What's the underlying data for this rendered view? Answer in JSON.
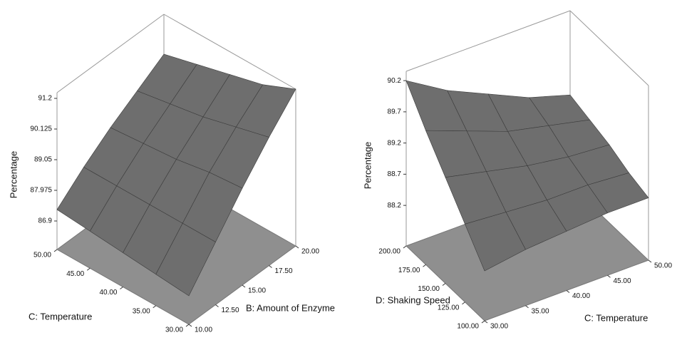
{
  "chart_data": [
    {
      "type": "surface",
      "z_label": "Percentage",
      "x_label": "B: Amount of Enzyme",
      "y_label": "C: Temperature",
      "color": "#6e6e6e",
      "x": [
        10,
        12.5,
        15,
        17.5,
        20
      ],
      "y": [
        30,
        35,
        40,
        45,
        50
      ],
      "z": [
        [
          86.9,
          88.1,
          89.3,
          90.4,
          91.4
        ],
        [
          87.0,
          88.1,
          89.2,
          90.1,
          90.9
        ],
        [
          87.1,
          88.1,
          89.0,
          89.8,
          90.6
        ],
        [
          87.2,
          88.1,
          88.9,
          89.6,
          90.3
        ],
        [
          87.3,
          88.1,
          88.8,
          89.4,
          90.0
        ]
      ],
      "xlim": [
        10,
        20
      ],
      "ylim": [
        30,
        50
      ],
      "zlim": [
        85.9,
        91.4
      ],
      "xticks": [
        {
          "value": 10,
          "label": "10.00"
        },
        {
          "value": 12.5,
          "label": "12.50"
        },
        {
          "value": 15,
          "label": "15.00"
        },
        {
          "value": 17.5,
          "label": "17.50"
        },
        {
          "value": 20,
          "label": "20.00"
        }
      ],
      "yticks": [
        {
          "value": 30,
          "label": "30.00"
        },
        {
          "value": 35,
          "label": "35.00"
        },
        {
          "value": 40,
          "label": "40.00"
        },
        {
          "value": 45,
          "label": "45.00"
        },
        {
          "value": 50,
          "label": "50.00"
        }
      ],
      "zticks": [
        86.9,
        87.975,
        89.05,
        90.125,
        91.2
      ]
    },
    {
      "type": "surface",
      "z_label": "Percentage",
      "x_label": "C: Temperature",
      "y_label": "D: Shaking Speed",
      "color": "#6e6e6e",
      "x": [
        30,
        35,
        40,
        45,
        50
      ],
      "y": [
        100,
        125,
        150,
        175,
        200
      ],
      "z": [
        [
          88.35,
          88.45,
          88.5,
          88.55,
          88.55
        ],
        [
          88.8,
          88.75,
          88.7,
          88.7,
          88.65
        ],
        [
          89.25,
          89.1,
          88.95,
          88.85,
          88.8
        ],
        [
          89.7,
          89.45,
          89.2,
          89.05,
          88.9
        ],
        [
          90.2,
          89.8,
          89.5,
          89.2,
          89.0
        ]
      ],
      "xlim": [
        30,
        50
      ],
      "ylim": [
        100,
        200
      ],
      "zlim": [
        87.55,
        90.35
      ],
      "xticks": [
        {
          "value": 30,
          "label": "30.00"
        },
        {
          "value": 35,
          "label": "35.00"
        },
        {
          "value": 40,
          "label": "40.00"
        },
        {
          "value": 45,
          "label": "45.00"
        },
        {
          "value": 50,
          "label": "50.00"
        }
      ],
      "yticks": [
        {
          "value": 100,
          "label": "100.00"
        },
        {
          "value": 125,
          "label": "125.00"
        },
        {
          "value": 150,
          "label": "150.00"
        },
        {
          "value": 175,
          "label": "175.00"
        },
        {
          "value": 200,
          "label": "200.00"
        }
      ],
      "zticks": [
        88.2,
        88.7,
        89.2,
        89.7,
        90.2
      ]
    }
  ]
}
